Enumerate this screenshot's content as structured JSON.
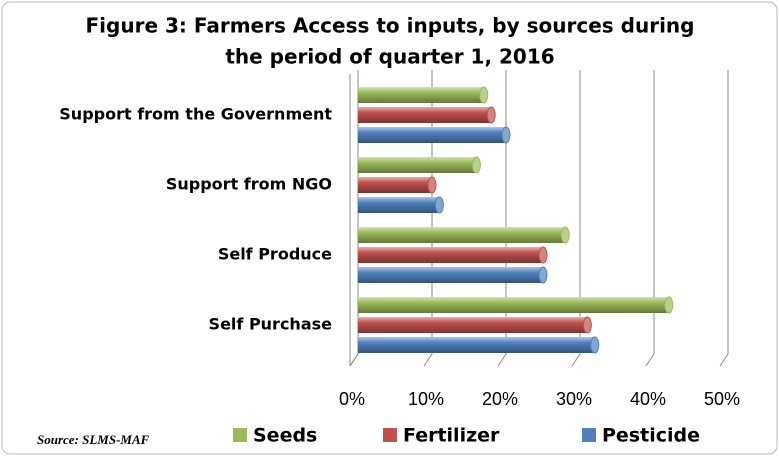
{
  "chart_data": {
    "type": "bar",
    "orientation": "horizontal",
    "title": "Figure 3: Farmers Access to inputs, by sources during the period of quarter 1, 2016",
    "title_lines": [
      "Figure 3: Farmers Access to inputs, by sources during",
      "the period of quarter 1, 2016"
    ],
    "categories": [
      "Support from the Government",
      "Support from NGO",
      "Self Produce",
      "Self Purchase"
    ],
    "series": [
      {
        "name": "Seeds",
        "color": "#9bbb59",
        "values": [
          17,
          16,
          28,
          42
        ]
      },
      {
        "name": "Fertilizer",
        "color": "#c0504d",
        "values": [
          18,
          10,
          25,
          31
        ]
      },
      {
        "name": "Pesticide",
        "color": "#4f81bd",
        "values": [
          20,
          11,
          25,
          32
        ]
      }
    ],
    "xlim": [
      0,
      50
    ],
    "xticks": [
      {
        "value": 0,
        "label": "0%"
      },
      {
        "value": 10,
        "label": "10%"
      },
      {
        "value": 20,
        "label": "20%"
      },
      {
        "value": 30,
        "label": "30%"
      },
      {
        "value": 40,
        "label": "40%"
      },
      {
        "value": 50,
        "label": "50%"
      }
    ],
    "grid": true,
    "legend": "bottom",
    "source": "Source: SLMS-MAF"
  }
}
